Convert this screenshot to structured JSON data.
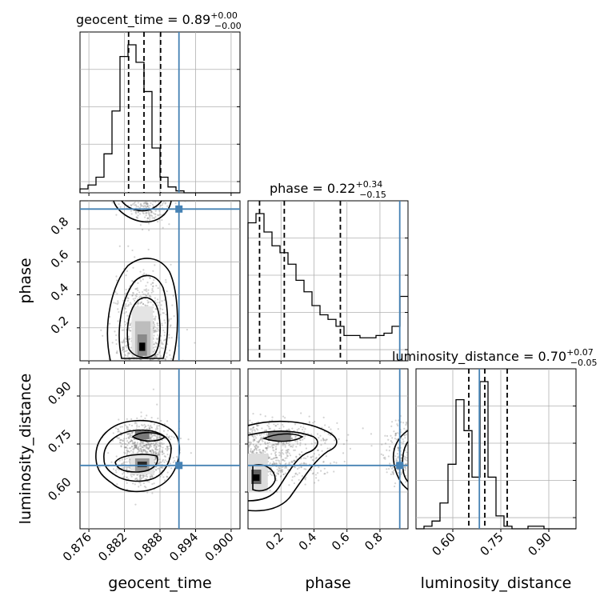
{
  "colors": {
    "truth": "#4682b4",
    "hist": "#000000",
    "grid": "#b0b0b0",
    "scatter": "#808080"
  },
  "chart_data": {
    "type": "corner",
    "parameters": [
      "geocent_time",
      "phase",
      "luminosity_distance"
    ],
    "truths": {
      "geocent_time": 0.8912,
      "phase": 0.92,
      "luminosity_distance": 0.683
    },
    "titles": [
      {
        "param": "geocent_time",
        "base": "geocent_time = 0.89",
        "plus": "+0.00",
        "minus": "−0.00"
      },
      {
        "param": "phase",
        "base": "phase = 0.22",
        "plus": "+0.34",
        "minus": "−0.15"
      },
      {
        "param": "luminosity_distance",
        "base": "luminosity_distance = 0.70",
        "plus": "+0.07",
        "minus": "−0.05"
      }
    ],
    "axis_labels": {
      "geocent_time": "geocent_time",
      "phase": "phase",
      "luminosity_distance": "luminosity_distance"
    },
    "ranges": {
      "geocent_time": [
        0.8745,
        0.9015
      ],
      "phase": [
        0.0,
        0.97
      ],
      "luminosity_distance": [
        0.485,
        0.985
      ]
    },
    "ticks": {
      "geocent_time": [
        "0.876",
        "0.882",
        "0.888",
        "0.894",
        "0.900"
      ],
      "phase": [
        "0.2",
        "0.4",
        "0.6",
        "0.8"
      ],
      "luminosity_distance": [
        "0.60",
        "0.75",
        "0.90"
      ]
    },
    "grid": true,
    "quantiles": {
      "geocent_time": [
        0.8827,
        0.8853,
        0.8881
      ],
      "phase": [
        0.07,
        0.22,
        0.56
      ],
      "luminosity_distance": [
        0.65,
        0.7,
        0.77
      ]
    },
    "hist_geocent_time": {
      "edges_start": 0.8745,
      "bin_width": 0.00135,
      "counts": [
        2,
        4,
        8,
        20,
        42,
        70,
        76,
        67,
        52,
        23,
        8,
        3,
        1,
        0,
        0,
        0,
        0,
        0,
        0,
        0
      ]
    },
    "hist_phase": {
      "edges_start": 0.0,
      "bin_width": 0.0485,
      "counts": [
        60,
        64,
        56,
        50,
        47,
        42,
        35,
        30,
        24,
        20,
        18,
        15,
        11,
        11,
        10,
        10,
        11,
        12,
        15,
        28
      ]
    },
    "hist_luminosity_distance": {
      "edges_start": 0.485,
      "bin_width": 0.025,
      "counts": [
        0,
        1,
        3,
        10,
        25,
        50,
        38,
        20,
        57,
        20,
        5,
        1,
        0,
        0,
        1,
        1,
        0,
        0,
        0,
        0
      ]
    }
  }
}
